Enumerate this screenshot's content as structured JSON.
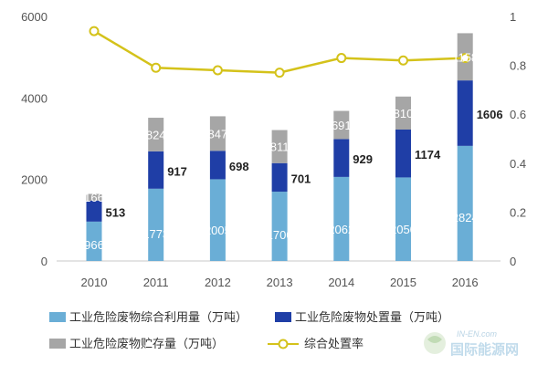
{
  "chart_data": {
    "type": "bar",
    "categories": [
      "2010",
      "2011",
      "2012",
      "2013",
      "2014",
      "2015",
      "2016"
    ],
    "series": [
      {
        "name": "工业危险废物综合利用量（万吨）",
        "values": [
          966,
          1773,
          2005,
          1700,
          2062,
          2050,
          2824
        ],
        "color": "#6aaed6"
      },
      {
        "name": "工业危险废物处置量（万吨）",
        "values": [
          513,
          917,
          698,
          701,
          929,
          1174,
          1606
        ],
        "color": "#1f3ea6"
      },
      {
        "name": "工业危险废物贮存量（万吨）",
        "values": [
          166,
          824,
          847,
          811,
          691,
          810,
          1158
        ],
        "color": "#a6a6a6"
      }
    ],
    "line_series": {
      "name": "综合处置率",
      "values": [
        0.94,
        0.79,
        0.78,
        0.77,
        0.83,
        0.82,
        0.83
      ],
      "color": "#d4c21a"
    },
    "y_left": {
      "min": 0,
      "max": 6000,
      "ticks": [
        0,
        2000,
        4000,
        6000
      ]
    },
    "y_right": {
      "min": 0,
      "max": 1,
      "ticks": [
        "0",
        "0.2",
        "0.4",
        "0.6",
        "0.8",
        "1"
      ],
      "tick_values": [
        0,
        0.2,
        0.4,
        0.6,
        0.8,
        1
      ]
    },
    "legend_position": "bottom"
  },
  "watermark": {
    "top": "IN-EN.com",
    "main": "国际能源网"
  }
}
